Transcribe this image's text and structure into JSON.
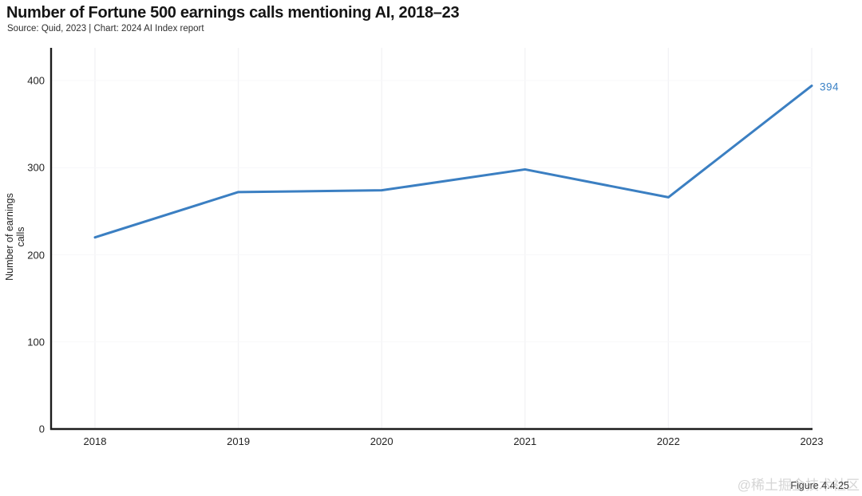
{
  "header": {
    "title": "Number of Fortune 500 earnings calls mentioning AI, 2018–23",
    "subtitle": "Source: Quid, 2023 | Chart: 2024 AI Index report"
  },
  "chart_data": {
    "type": "line",
    "title": "Number of Fortune 500 earnings calls mentioning AI, 2018–23",
    "categories": [
      "2018",
      "2019",
      "2020",
      "2021",
      "2022",
      "2023"
    ],
    "series": [
      {
        "name": "Number of earnings calls",
        "values": [
          220,
          272,
          274,
          298,
          266,
          394
        ]
      }
    ],
    "xlabel": "",
    "ylabel": "Number of earnings calls",
    "ylim": [
      0,
      440
    ],
    "y_ticks": [
      0,
      100,
      200,
      300,
      400
    ],
    "grid": "very-light vertical year gridlines, faint horizontal tick gridlines",
    "legend_position": "none",
    "line_color": "#3b7fc2",
    "axis_color": "#1c1c1c",
    "grid_color": "#f2f2f5",
    "end_label": "394",
    "end_label_color": "#3b82c6"
  },
  "footer": {
    "figure_label": "Figure 4.4.25",
    "watermark": "@稀土掘金技术社区"
  }
}
